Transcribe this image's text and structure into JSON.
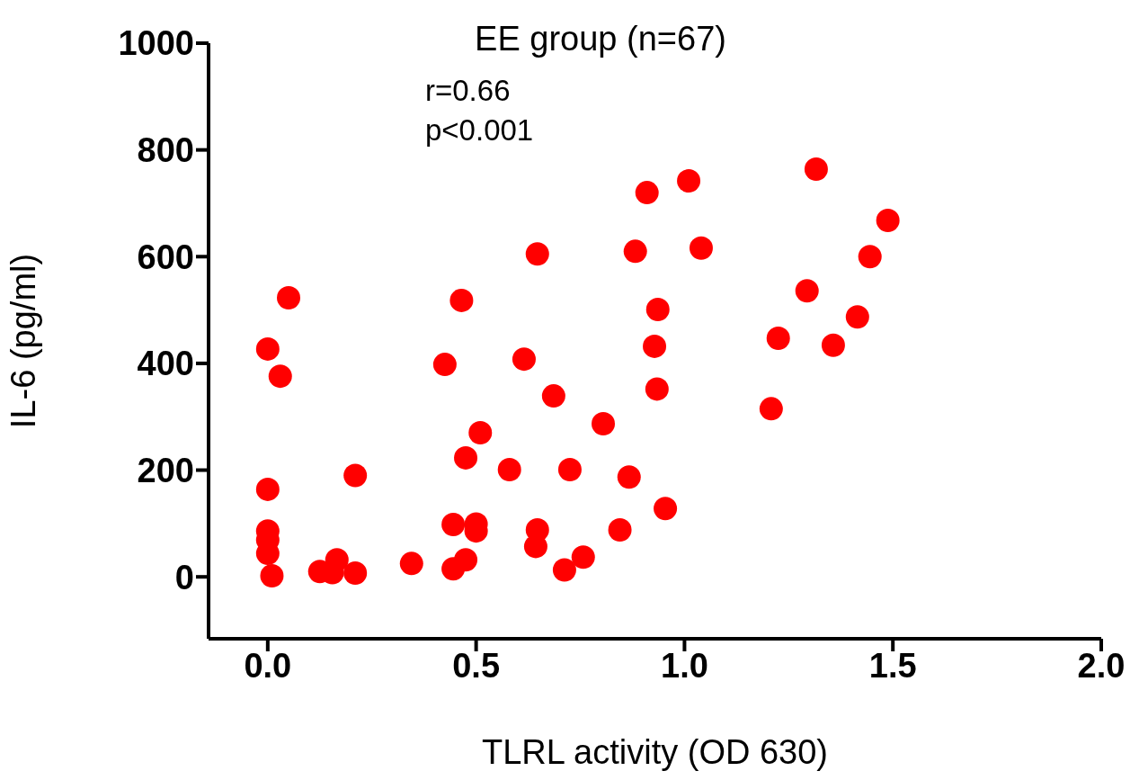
{
  "chart_data": {
    "type": "scatter",
    "title": "EE group (n=67)",
    "annotations": [
      "r=0.66",
      "p<0.001"
    ],
    "xlabel": "TLRL activity (OD 630)",
    "ylabel": "IL-6 (pg/ml)",
    "xlim": [
      -0.142,
      2
    ],
    "xticks": [
      {
        "value": 0,
        "label": "0.0"
      },
      {
        "value": 0.5,
        "label": "0.5"
      },
      {
        "value": 1,
        "label": "1.0"
      },
      {
        "value": 1.5,
        "label": "1.5"
      },
      {
        "value": 2,
        "label": "2.0"
      }
    ],
    "ylim": [
      -116,
      1000
    ],
    "yticks": [
      0,
      200,
      400,
      600,
      800,
      1000
    ],
    "grid": false,
    "marker": "circle",
    "series": [
      {
        "color": "#ff0000",
        "x": [
          0,
          0.05,
          0.03,
          0,
          0,
          0,
          0,
          0.01,
          0.125,
          0.166,
          0.21,
          0.21,
          0.155,
          0.345,
          0.425,
          0.465,
          0.51,
          0.475,
          0.445,
          0.5,
          0.5,
          0.445,
          0.475,
          0.58,
          0.615,
          0.647,
          0.686,
          0.647,
          0.643,
          0.725,
          0.712,
          0.757,
          0.805,
          0.867,
          0.845,
          0.882,
          0.91,
          0.936,
          0.928,
          0.934,
          0.954,
          1.01,
          1.04,
          1.316,
          1.488,
          1.445,
          1.294,
          1.415,
          1.225,
          1.357,
          1.208
        ],
        "values": [
          427,
          523,
          376,
          164,
          86,
          69,
          44,
          2,
          10,
          32,
          190,
          7,
          8,
          25,
          398,
          518,
          270,
          223,
          98,
          99,
          86,
          15,
          32,
          201,
          408,
          605,
          339,
          88,
          57,
          201,
          13,
          37,
          287,
          187,
          88,
          610,
          720,
          501,
          432,
          352,
          128,
          742,
          616,
          764,
          668,
          600,
          536,
          487,
          447,
          434,
          315
        ]
      }
    ]
  }
}
